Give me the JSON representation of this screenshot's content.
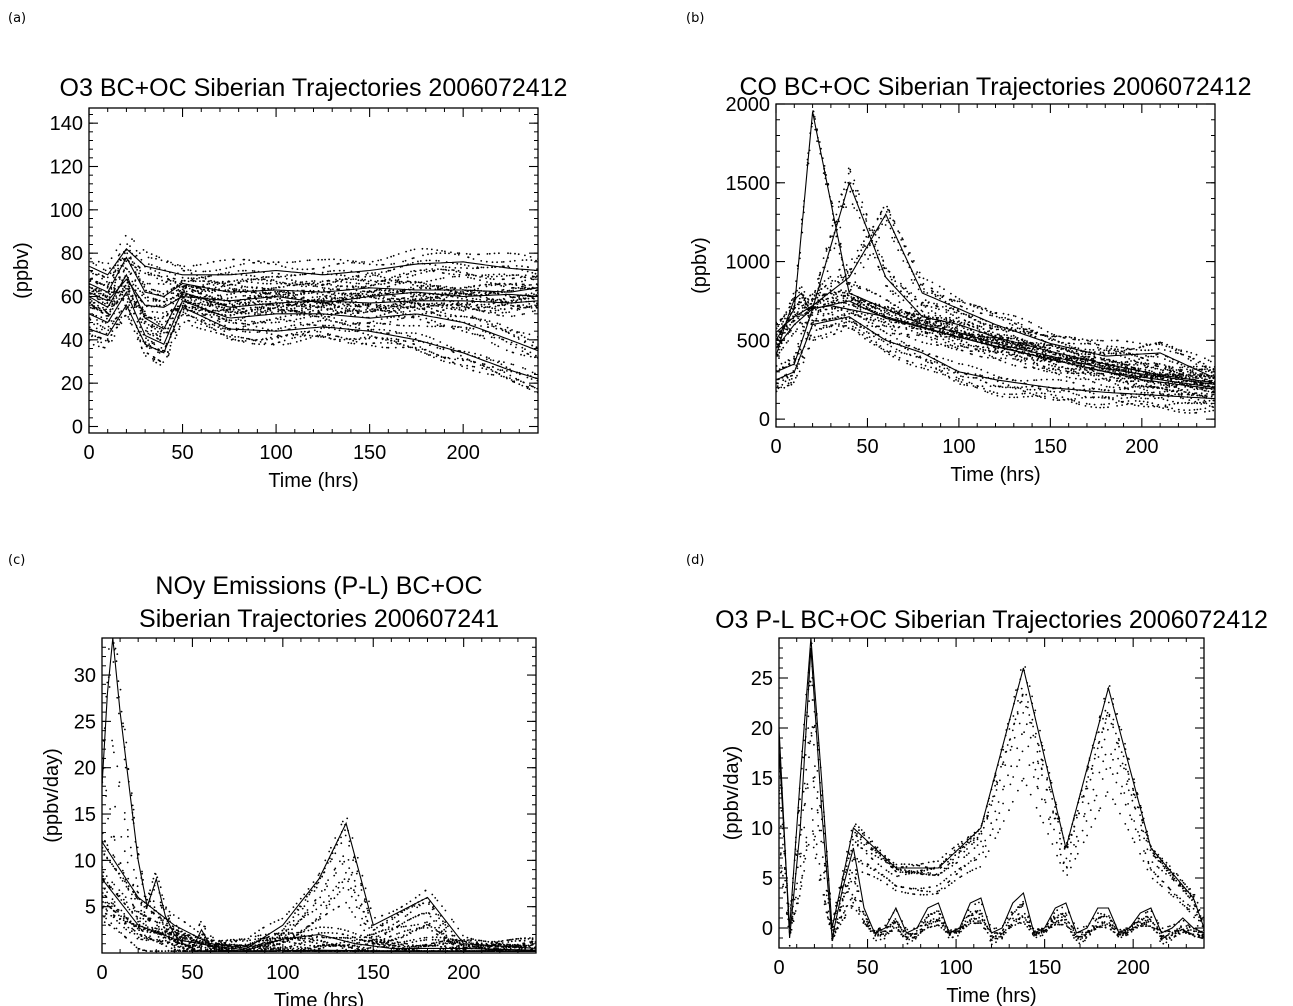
{
  "panels": [
    {
      "label": "(a)",
      "title_lines": [
        "O3  BC+OC Siberian Trajectories 2006072412"
      ],
      "chart_data": {
        "type": "line",
        "title": "O3  BC+OC Siberian Trajectories 2006072412",
        "xlabel": "Time (hrs)",
        "ylabel": "(ppbv)",
        "xlim": [
          0,
          240
        ],
        "ylim": [
          -3,
          147
        ],
        "xticks": [
          0,
          50,
          100,
          150,
          200
        ],
        "yticks": [
          0,
          20,
          40,
          60,
          80,
          100,
          120,
          140
        ],
        "grid": false,
        "legend": "none",
        "series": [
          {
            "x": [
              0,
              10,
              20,
              30,
              40,
              50,
              75,
              100,
              125,
              150,
              175,
              200,
              225,
              240
            ],
            "values": [
              60,
              55,
              70,
              50,
              45,
              62,
              55,
              57,
              58,
              57,
              58,
              58,
              57,
              58
            ]
          },
          {
            "x": [
              0,
              10,
              20,
              30,
              40,
              50,
              75,
              100,
              125,
              150,
              175,
              200,
              225,
              240
            ],
            "values": [
              66,
              62,
              78,
              62,
              60,
              66,
              62,
              63,
              62,
              64,
              63,
              63,
              62,
              64
            ]
          },
          {
            "x": [
              0,
              10,
              20,
              30,
              40,
              50,
              75,
              100,
              125,
              150,
              175,
              200,
              225,
              240
            ],
            "values": [
              52,
              48,
              62,
              42,
              38,
              58,
              50,
              52,
              52,
              50,
              52,
              48,
              40,
              35
            ]
          },
          {
            "x": [
              0,
              10,
              20,
              30,
              40,
              50,
              75,
              100,
              125,
              150,
              175,
              200,
              225,
              240
            ],
            "values": [
              74,
              70,
              82,
              74,
              72,
              70,
              70,
              72,
              70,
              72,
              75,
              76,
              73,
              72
            ]
          },
          {
            "x": [
              0,
              10,
              20,
              30,
              40,
              50,
              75,
              100,
              125,
              150,
              175,
              200,
              225,
              240
            ],
            "values": [
              45,
              42,
              56,
              38,
              34,
              55,
              45,
              44,
              46,
              44,
              40,
              34,
              26,
              22
            ]
          },
          {
            "x": [
              0,
              10,
              20,
              30,
              40,
              50,
              75,
              100,
              125,
              150,
              175,
              200,
              225,
              240
            ],
            "values": [
              62,
              58,
              68,
              56,
              55,
              60,
              58,
              60,
              57,
              60,
              62,
              60,
              61,
              60
            ]
          }
        ]
      }
    },
    {
      "label": "(b)",
      "title_lines": [
        "CO  BC+OC Siberian Trajectories 2006072412"
      ],
      "chart_data": {
        "type": "line",
        "title": "CO  BC+OC Siberian Trajectories 2006072412",
        "xlabel": "Time (hrs)",
        "ylabel": "(ppbv)",
        "xlim": [
          0,
          240
        ],
        "ylim": [
          -50,
          2000
        ],
        "xticks": [
          0,
          50,
          100,
          150,
          200
        ],
        "yticks": [
          0,
          500,
          1000,
          1500,
          2000
        ],
        "grid": false,
        "legend": "none",
        "series": [
          {
            "x": [
              0,
              10,
              20,
              40,
              60,
              80,
              100,
              120,
              150,
              180,
              210,
              240
            ],
            "values": [
              300,
              350,
              700,
              750,
              640,
              580,
              520,
              460,
              380,
              300,
              250,
              200
            ]
          },
          {
            "x": [
              0,
              10,
              20,
              40,
              60,
              80,
              100,
              120,
              150,
              180,
              210,
              240
            ],
            "values": [
              500,
              700,
              1950,
              800,
              700,
              600,
              550,
              480,
              400,
              320,
              270,
              220
            ]
          },
          {
            "x": [
              0,
              10,
              20,
              40,
              60,
              80,
              100,
              120,
              150,
              180,
              210,
              240
            ],
            "values": [
              450,
              600,
              700,
              1500,
              900,
              650,
              600,
              520,
              430,
              350,
              280,
              230
            ]
          },
          {
            "x": [
              0,
              10,
              20,
              40,
              60,
              80,
              100,
              120,
              150,
              180,
              210,
              240
            ],
            "values": [
              550,
              650,
              720,
              900,
              1300,
              800,
              700,
              600,
              480,
              400,
              420,
              260
            ]
          },
          {
            "x": [
              0,
              10,
              20,
              40,
              60,
              80,
              100,
              120,
              150,
              180,
              210,
              240
            ],
            "values": [
              250,
              300,
              600,
              650,
              500,
              420,
              300,
              250,
              200,
              170,
              150,
              130
            ]
          },
          {
            "x": [
              0,
              5,
              10,
              14,
              18,
              30,
              60,
              100,
              150,
              200,
              240
            ],
            "values": [
              400,
              600,
              760,
              800,
              700,
              720,
              650,
              520,
              380,
              250,
              190
            ]
          }
        ]
      }
    },
    {
      "label": "(c)",
      "title_lines": [
        "NOy Emissions (P-L)  BC+OC",
        "Siberian Trajectories 200607241"
      ],
      "chart_data": {
        "type": "scatter",
        "title": "NOy Emissions (P-L)  BC+OC Siberian Trajectories 200607241",
        "xlabel": "Time (hrs)",
        "ylabel": "(ppbv/day)",
        "xlim": [
          0,
          240
        ],
        "ylim": [
          0,
          34
        ],
        "xticks": [
          0,
          50,
          100,
          150,
          200
        ],
        "yticks": [
          5,
          10,
          15,
          20,
          25,
          30
        ],
        "grid": false,
        "legend": "none",
        "series": [
          {
            "x": [
              0,
              3,
              6,
              10,
              15,
              20,
              25,
              30,
              35,
              40,
              45,
              50,
              55,
              60,
              65,
              80,
              120,
              160,
              200,
              240
            ],
            "values": [
              18,
              28,
              34,
              26,
              18,
              10,
              5,
              8,
              4,
              2,
              1,
              0.5,
              2.5,
              0.8,
              0.3,
              0.2,
              0.3,
              0.2,
              0.2,
              0.2
            ]
          },
          {
            "x": [
              0,
              20,
              40,
              60,
              80,
              100,
              120,
              135,
              150,
              180,
              200,
              240
            ],
            "values": [
              12,
              6,
              3,
              1,
              0.5,
              3,
              8,
              14,
              3,
              6,
              1,
              0.5
            ]
          },
          {
            "x": [
              0,
              20,
              40,
              60,
              80,
              100,
              120,
              140,
              160,
              200,
              240
            ],
            "values": [
              8,
              3,
              1.5,
              0.8,
              0.3,
              1.5,
              2,
              1,
              0.5,
              0.5,
              0.3
            ]
          }
        ]
      }
    },
    {
      "label": "(d)",
      "title_lines": [
        "O3 P-L  BC+OC Siberian Trajectories 2006072412"
      ],
      "chart_data": {
        "type": "scatter",
        "title": "O3 P-L  BC+OC Siberian Trajectories 2006072412",
        "xlabel": "Time (hrs)",
        "ylabel": "(ppbv/day)",
        "xlim": [
          0,
          240
        ],
        "ylim": [
          -2,
          29
        ],
        "xticks": [
          0,
          50,
          100,
          150,
          200
        ],
        "yticks": [
          0,
          5,
          10,
          15,
          20,
          25
        ],
        "grid": false,
        "legend": "none",
        "series": [
          {
            "x": [
              0,
              6,
              12,
              18,
              24,
              30,
              36,
              42,
              48,
              54,
              60,
              66,
              72,
              78,
              84,
              90,
              96,
              102,
              108,
              114,
              120,
              126,
              132,
              138,
              144,
              150,
              156,
              162,
              168,
              174,
              180,
              186,
              192,
              198,
              204,
              210,
              216,
              222,
              228,
              234,
              240
            ],
            "values": [
              20,
              -1,
              10,
              28,
              12,
              -1,
              4,
              8,
              2,
              -0.5,
              0,
              2,
              -0.5,
              0,
              2,
              2.5,
              -0.5,
              0,
              2.5,
              3,
              -0.5,
              0,
              2.5,
              3.5,
              -0.5,
              0,
              2,
              2.5,
              -0.5,
              0,
              2,
              2,
              -0.5,
              0,
              1.5,
              2,
              -0.5,
              0,
              1,
              0,
              -0.5
            ]
          },
          {
            "x": [
              0,
              6,
              12,
              18,
              24,
              30,
              42,
              66,
              90,
              114,
              138,
              162,
              186,
              210,
              234,
              240
            ],
            "values": [
              18,
              0,
              15,
              29,
              15,
              0,
              10,
              6,
              6,
              10,
              26,
              8,
              24,
              8,
              3,
              0
            ]
          }
        ]
      }
    }
  ]
}
